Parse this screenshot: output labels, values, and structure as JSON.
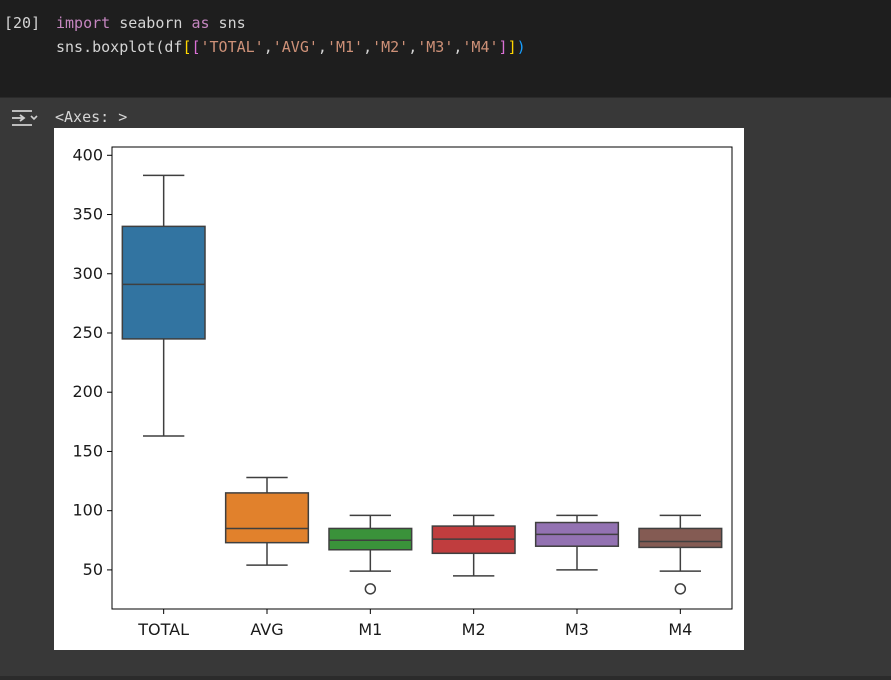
{
  "cell": {
    "execution_count": "[20]",
    "code_lines": [
      {
        "parts": [
          {
            "t": "import",
            "c": "kw"
          },
          {
            "t": " seaborn ",
            "c": ""
          },
          {
            "t": "as",
            "c": "kw"
          },
          {
            "t": " sns",
            "c": ""
          }
        ]
      },
      {
        "parts": [
          {
            "t": "sns.boxplot(df",
            "c": ""
          },
          {
            "t": "[",
            "c": "br1"
          },
          {
            "t": "[",
            "c": "br2"
          },
          {
            "t": "'TOTAL'",
            "c": "str"
          },
          {
            "t": ",",
            "c": ""
          },
          {
            "t": "'AVG'",
            "c": "str"
          },
          {
            "t": ",",
            "c": ""
          },
          {
            "t": "'M1'",
            "c": "str"
          },
          {
            "t": ",",
            "c": ""
          },
          {
            "t": "'M2'",
            "c": "str"
          },
          {
            "t": ",",
            "c": ""
          },
          {
            "t": "'M3'",
            "c": "str"
          },
          {
            "t": ",",
            "c": ""
          },
          {
            "t": "'M4'",
            "c": "str"
          },
          {
            "t": "]",
            "c": "br2"
          },
          {
            "t": "]",
            "c": "br1"
          },
          {
            "t": ")",
            "c": "br3"
          }
        ]
      }
    ]
  },
  "output": {
    "text": "<Axes: >",
    "icon": "output-toggle-icon"
  },
  "chart_data": {
    "type": "box",
    "title": "",
    "xlabel": "",
    "ylabel": "",
    "ylim": [
      17,
      407
    ],
    "yticks": [
      50,
      100,
      150,
      200,
      250,
      300,
      350,
      400
    ],
    "grid": false,
    "categories": [
      "TOTAL",
      "AVG",
      "M1",
      "M2",
      "M3",
      "M4"
    ],
    "boxes": [
      {
        "name": "TOTAL",
        "whisker_low": 163,
        "q1": 245,
        "median": 291,
        "q3": 340,
        "whisker_high": 383,
        "outliers": [],
        "color": "#3274a1"
      },
      {
        "name": "AVG",
        "whisker_low": 54,
        "q1": 73,
        "median": 85,
        "q3": 115,
        "whisker_high": 128,
        "outliers": [],
        "color": "#e1812c"
      },
      {
        "name": "M1",
        "whisker_low": 49,
        "q1": 67,
        "median": 75,
        "q3": 85,
        "whisker_high": 96,
        "outliers": [
          34
        ],
        "color": "#3a923a"
      },
      {
        "name": "M2",
        "whisker_low": 45,
        "q1": 64,
        "median": 76,
        "q3": 87,
        "whisker_high": 96,
        "outliers": [],
        "color": "#c03d3e"
      },
      {
        "name": "M3",
        "whisker_low": 50,
        "q1": 70,
        "median": 80,
        "q3": 90,
        "whisker_high": 96,
        "outliers": [],
        "color": "#9372b2"
      },
      {
        "name": "M4",
        "whisker_low": 49,
        "q1": 69,
        "median": 74,
        "q3": 85,
        "whisker_high": 96,
        "outliers": [
          34
        ],
        "color": "#845b53"
      }
    ]
  }
}
